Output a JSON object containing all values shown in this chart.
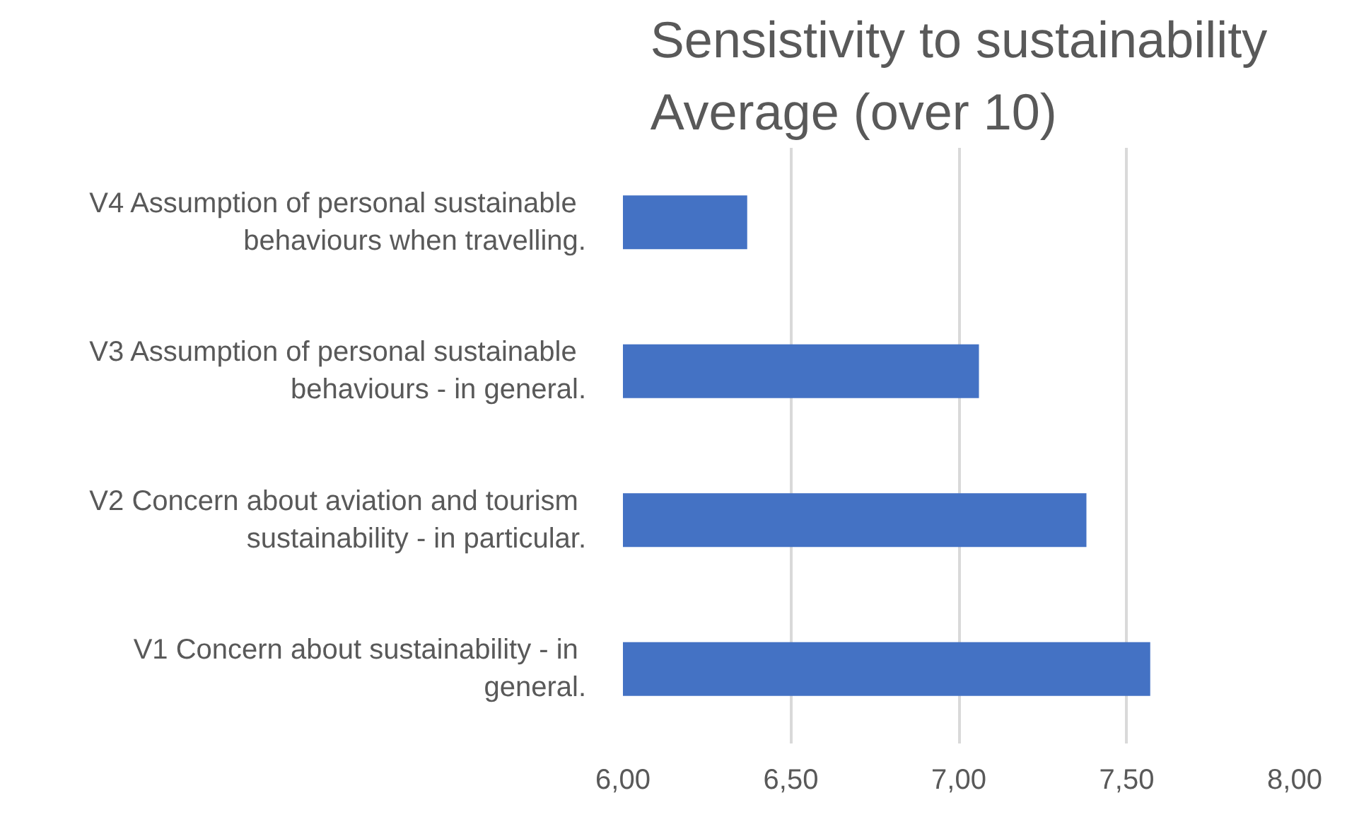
{
  "chart_data": {
    "type": "bar",
    "orientation": "horizontal",
    "title": "Sensistivity to sustainability\nAverage (over 10)",
    "categories": [
      "V4  Assumption of personal sustainable behaviours when travelling.",
      "V3  Assumption of personal sustainable behaviours - in general.",
      "V2  Concern about aviation and tourism sustainability - in particular.",
      "V1  Concern about sustainability - in general."
    ],
    "values": [
      6.37,
      7.06,
      7.38,
      7.57
    ],
    "color": "#4472c4",
    "xlim": [
      6,
      8
    ],
    "xticks": [
      {
        "value": 6,
        "label": "6,00"
      },
      {
        "value": 6.5,
        "label": "6,50"
      },
      {
        "value": 7,
        "label": "7,00"
      },
      {
        "value": 7.5,
        "label": "7,50"
      },
      {
        "value": 8,
        "label": "8,00"
      }
    ],
    "grid": "x"
  }
}
